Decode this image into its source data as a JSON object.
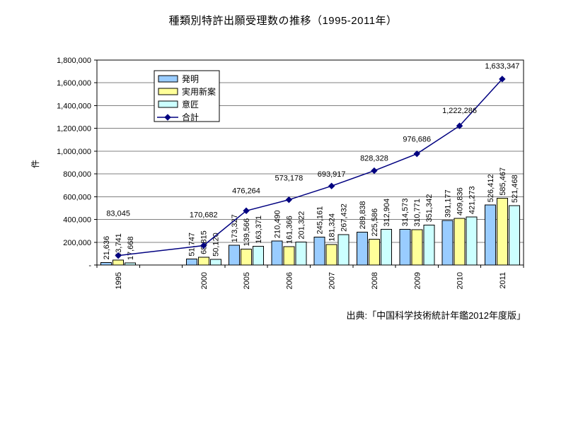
{
  "title": "種類別特許出願受理数の推移（1995-2011年）",
  "source": "出典:「中国科学技術統計年鑑2012年度版」",
  "y_axis": {
    "title": "件",
    "min": 0,
    "max": 1800000,
    "tick_interval": 200000,
    "zero_label": "-"
  },
  "legend": {
    "position": "upper-left-inside",
    "entries": [
      "発明",
      "実用新案",
      "意匠",
      "合計"
    ]
  },
  "colors": {
    "invention": "#99CCFF",
    "utility_model": "#FFFF99",
    "design": "#CCFFFF",
    "total_line": "#000080",
    "bar_border": "#000000",
    "gridline": "#808080",
    "axis": "#000000"
  },
  "chart_data": {
    "type": "bar",
    "subtype": "grouped bars + total line overlay",
    "title": "種類別特許出願受理数の推移（1995-2011年）",
    "xlabel": "",
    "ylabel": "件",
    "ylim": [
      0,
      1800000
    ],
    "grid": true,
    "legend_position": "upper left inside plot",
    "categories": [
      "1995",
      "2000",
      "2005",
      "2006",
      "2007",
      "2008",
      "2009",
      "2010",
      "2011"
    ],
    "series": [
      {
        "name": "発明",
        "key": "invention",
        "type": "bar",
        "color": "#99CCFF",
        "values": [
          21636,
          51747,
          173327,
          210490,
          245161,
          289838,
          314573,
          391177,
          526412
        ]
      },
      {
        "name": "実用新案",
        "key": "utility_model",
        "type": "bar",
        "color": "#FFFF99",
        "values": [
          43741,
          68815,
          139566,
          161366,
          181324,
          225586,
          310771,
          409836,
          585467
        ]
      },
      {
        "name": "意匠",
        "key": "design",
        "type": "bar",
        "color": "#CCFFFF",
        "values": [
          17668,
          50120,
          163371,
          201322,
          267432,
          312904,
          351342,
          421273,
          521468
        ]
      },
      {
        "name": "合計",
        "key": "total",
        "type": "line",
        "color": "#000080",
        "marker": "diamond",
        "values": [
          83045,
          170682,
          476264,
          573178,
          693917,
          828328,
          976686,
          1222286,
          1633347
        ]
      }
    ],
    "data_labels": {
      "bars": "rotated 90° above each bar",
      "line": "horizontal above each point"
    },
    "x_axis_note": "empty slot between 1995 and 2000"
  }
}
